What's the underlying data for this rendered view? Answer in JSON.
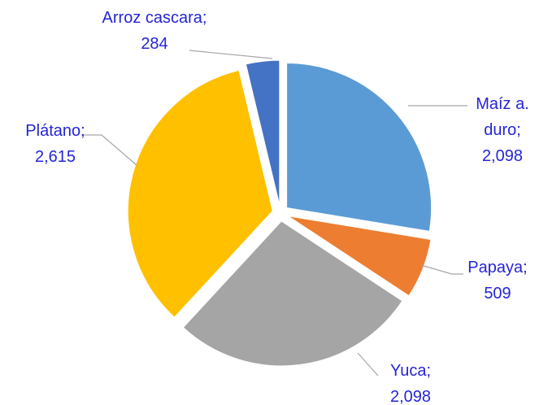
{
  "chart_data": {
    "type": "pie",
    "categories": [
      "Maíz a. duro",
      "Papaya",
      "Yuca",
      "Plátano",
      "Arroz cascara"
    ],
    "values": [
      2098,
      509,
      2098,
      2615,
      284
    ],
    "value_labels": [
      "2,098",
      "509",
      "2,098",
      "2,615",
      "284"
    ],
    "label_separator": ";",
    "colors": [
      "#5b9bd5",
      "#ed7d31",
      "#a5a5a5",
      "#ffc000",
      "#4472c4"
    ]
  }
}
